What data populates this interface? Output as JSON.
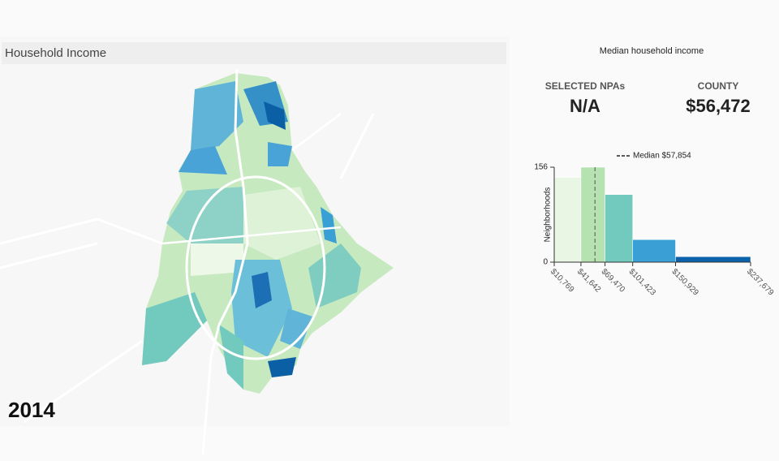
{
  "panel": {
    "title": "Household Income",
    "year": "2014"
  },
  "summary": {
    "title": "Median household income",
    "selected_label": "SELECTED NPAs",
    "selected_value": "N/A",
    "county_label": "COUNTY",
    "county_value": "$56,472"
  },
  "chart_data": {
    "type": "histogram",
    "bins": [
      10769,
      41642,
      69470,
      101423,
      150929,
      237679
    ],
    "values": [
      139,
      156,
      111,
      37,
      9
    ],
    "colors": [
      "#e8f6e3",
      "#b6e2b2",
      "#72c9bd",
      "#3a9fd4",
      "#0b62ab"
    ],
    "xlim": [
      10769,
      237679
    ],
    "xticks": [
      {
        "value": 10769,
        "label": "$10,769"
      },
      {
        "value": 41642,
        "label": "$41,642"
      },
      {
        "value": 69470,
        "label": "$69,470"
      },
      {
        "value": 101423,
        "label": "$101,423"
      },
      {
        "value": 150929,
        "label": "$150,929"
      },
      {
        "value": 237679,
        "label": "$237,679"
      }
    ],
    "ylim": [
      0,
      156
    ],
    "yticks": [
      0,
      156
    ],
    "ylabel": "Neighborhoods",
    "median": 57854,
    "median_label": "Median $57,854"
  }
}
